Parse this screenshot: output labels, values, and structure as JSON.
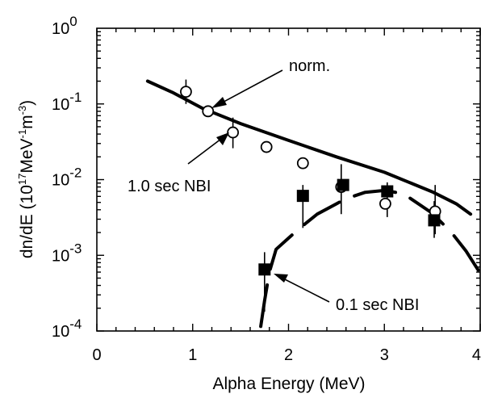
{
  "chart_data": {
    "type": "scatter",
    "xlabel": "Alpha Energy (MeV)",
    "ylabel": {
      "prefix": "dn/dE (10",
      "sup1": "17",
      "mid": "MeV",
      "sup2": "-1",
      "mid2": "m",
      "sup3": "-3",
      "suffix": ")"
    },
    "xlim": [
      0,
      4
    ],
    "ylim_log10": [
      -4,
      0
    ],
    "y_scale": "log",
    "x_ticks": [
      "0",
      "1",
      "2",
      "3",
      "4"
    ],
    "y_ticks": [
      {
        "base": "10",
        "exp": "0"
      },
      {
        "base": "10",
        "exp": "-1"
      },
      {
        "base": "10",
        "exp": "-2"
      },
      {
        "base": "10",
        "exp": "-3"
      },
      {
        "base": "10",
        "exp": "-4"
      }
    ],
    "series": [
      {
        "marker": "open-circle",
        "points": [
          {
            "x": 0.93,
            "y": 0.145,
            "lo": 0.1,
            "hi": 0.21
          },
          {
            "x": 1.16,
            "y": 0.08
          },
          {
            "x": 1.42,
            "y": 0.042,
            "lo": 0.026,
            "hi": 0.066
          },
          {
            "x": 1.77,
            "y": 0.027
          },
          {
            "x": 2.15,
            "y": 0.0165
          },
          {
            "x": 2.55,
            "y": 0.008,
            "lo": 0.0035,
            "hi": 0.016
          },
          {
            "x": 3.01,
            "y": 0.0048
          },
          {
            "x": 3.53,
            "y": 0.0038,
            "lo": 0.0019,
            "hi": 0.0085
          }
        ]
      },
      {
        "marker": "filled-square",
        "points": [
          {
            "x": 1.75,
            "y": 0.00065,
            "lo": 0.00018,
            "hi": 0.0011
          },
          {
            "x": 2.15,
            "y": 0.0061,
            "lo": 0.0023,
            "hi": 0.0085
          },
          {
            "x": 2.57,
            "y": 0.0085
          },
          {
            "x": 3.03,
            "y": 0.007,
            "lo": 0.0032,
            "hi": 0.0092
          },
          {
            "x": 3.52,
            "y": 0.0029,
            "lo": 0.0017,
            "hi": 0.0052
          }
        ]
      }
    ],
    "curves": [
      {
        "style": "solid",
        "points": [
          [
            0.53,
            0.2
          ],
          [
            0.8,
            0.14
          ],
          [
            1.1,
            0.088
          ],
          [
            1.5,
            0.055
          ],
          [
            2.0,
            0.033
          ],
          [
            2.5,
            0.02
          ],
          [
            3.0,
            0.0125
          ],
          [
            3.5,
            0.0069
          ],
          [
            3.75,
            0.0048
          ],
          [
            3.9,
            0.0035
          ]
        ]
      },
      {
        "style": "dashed",
        "points": [
          [
            1.71,
            0.000115
          ],
          [
            1.75,
            0.00025
          ],
          [
            1.8,
            0.0006
          ],
          [
            1.87,
            0.0012
          ],
          [
            1.98,
            0.0016
          ],
          [
            2.12,
            0.0023
          ],
          [
            2.3,
            0.0035
          ],
          [
            2.6,
            0.0056
          ],
          [
            2.8,
            0.0068
          ],
          [
            3.0,
            0.0072
          ],
          [
            3.2,
            0.0065
          ],
          [
            3.5,
            0.0036
          ],
          [
            3.7,
            0.002
          ],
          [
            3.85,
            0.00115
          ],
          [
            4.0,
            0.00058
          ]
        ]
      }
    ],
    "annotations": [
      {
        "text": "norm."
      },
      {
        "text": "1.0 sec NBI"
      },
      {
        "text": "0.1 sec NBI"
      }
    ]
  }
}
